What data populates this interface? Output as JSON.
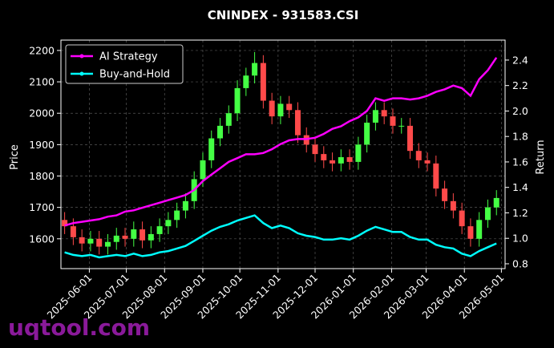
{
  "chart_data": {
    "type": "candlestick",
    "title": "CNINDEX - 931583.CSI",
    "ylabel": "Price",
    "y2label": "Return",
    "watermark": "uqtool.com",
    "x": [
      "2025-05-12",
      "2025-05-19",
      "2025-05-26",
      "2025-06-02",
      "2025-06-09",
      "2025-06-16",
      "2025-06-23",
      "2025-06-30",
      "2025-07-07",
      "2025-07-14",
      "2025-07-21",
      "2025-07-28",
      "2025-08-04",
      "2025-08-11",
      "2025-08-18",
      "2025-08-25",
      "2025-09-01",
      "2025-09-08",
      "2025-09-15",
      "2025-09-22",
      "2025-09-29",
      "2025-10-06",
      "2025-10-13",
      "2025-10-20",
      "2025-10-27",
      "2025-11-03",
      "2025-11-10",
      "2025-11-17",
      "2025-11-24",
      "2025-12-01",
      "2025-12-08",
      "2025-12-15",
      "2025-12-22",
      "2025-12-29",
      "2026-01-05",
      "2026-01-12",
      "2026-01-19",
      "2026-01-26",
      "2026-02-02",
      "2026-02-09",
      "2026-02-16",
      "2026-02-23",
      "2026-03-02",
      "2026-03-09",
      "2026-03-16",
      "2026-03-23",
      "2026-03-30",
      "2026-04-06",
      "2026-04-13",
      "2026-04-20",
      "2026-04-27"
    ],
    "candles": {
      "up_color": "#44ff44",
      "down_color": "#ff4a4a",
      "open": [
        1660,
        1640,
        1605,
        1585,
        1600,
        1575,
        1590,
        1610,
        1600,
        1630,
        1595,
        1615,
        1640,
        1660,
        1690,
        1720,
        1790,
        1850,
        1920,
        1960,
        2000,
        2080,
        2120,
        2160,
        2040,
        1990,
        2030,
        2010,
        1930,
        1900,
        1870,
        1850,
        1840,
        1860,
        1845,
        1900,
        1970,
        2010,
        1990,
        1960,
        1960,
        1880,
        1850,
        1840,
        1760,
        1720,
        1690,
        1640,
        1600,
        1660,
        1700
      ],
      "high": [
        1685,
        1665,
        1630,
        1625,
        1625,
        1615,
        1635,
        1635,
        1655,
        1655,
        1640,
        1665,
        1685,
        1715,
        1745,
        1815,
        1875,
        1945,
        1985,
        2025,
        2105,
        2145,
        2195,
        2185,
        2065,
        2055,
        2055,
        2035,
        1955,
        1925,
        1895,
        1875,
        1885,
        1885,
        1925,
        1995,
        2035,
        2035,
        2015,
        1985,
        1985,
        1905,
        1875,
        1865,
        1785,
        1745,
        1715,
        1665,
        1685,
        1725,
        1755
      ],
      "low": [
        1615,
        1580,
        1560,
        1560,
        1550,
        1550,
        1565,
        1575,
        1575,
        1570,
        1570,
        1590,
        1615,
        1635,
        1665,
        1695,
        1765,
        1825,
        1895,
        1935,
        1975,
        2055,
        2095,
        2015,
        1965,
        1965,
        1985,
        1905,
        1875,
        1845,
        1825,
        1815,
        1815,
        1820,
        1820,
        1875,
        1945,
        1965,
        1935,
        1935,
        1855,
        1825,
        1815,
        1735,
        1695,
        1665,
        1615,
        1575,
        1575,
        1635,
        1675
      ],
      "close": [
        1640,
        1605,
        1585,
        1600,
        1575,
        1590,
        1610,
        1600,
        1630,
        1595,
        1615,
        1640,
        1660,
        1690,
        1720,
        1790,
        1850,
        1920,
        1960,
        2000,
        2080,
        2120,
        2160,
        2040,
        1990,
        2030,
        2010,
        1930,
        1900,
        1870,
        1850,
        1840,
        1860,
        1845,
        1900,
        1970,
        2010,
        1990,
        1960,
        1960,
        1880,
        1850,
        1840,
        1760,
        1720,
        1690,
        1640,
        1600,
        1660,
        1700,
        1730
      ]
    },
    "series": [
      {
        "name": "AI Strategy",
        "color": "#ff00ff",
        "axis": "y2",
        "values": [
          1.1,
          1.12,
          1.13,
          1.14,
          1.15,
          1.17,
          1.18,
          1.21,
          1.22,
          1.24,
          1.26,
          1.28,
          1.3,
          1.32,
          1.34,
          1.38,
          1.45,
          1.5,
          1.55,
          1.6,
          1.63,
          1.66,
          1.66,
          1.67,
          1.7,
          1.74,
          1.77,
          1.78,
          1.78,
          1.79,
          1.82,
          1.86,
          1.88,
          1.92,
          1.95,
          2.0,
          2.1,
          2.08,
          2.1,
          2.1,
          2.09,
          2.1,
          2.12,
          2.15,
          2.17,
          2.2,
          2.18,
          2.12,
          2.25,
          2.32,
          2.42
        ]
      },
      {
        "name": "Buy-and-Hold",
        "color": "#00ffff",
        "axis": "y2",
        "values": [
          0.89,
          0.87,
          0.86,
          0.87,
          0.85,
          0.86,
          0.87,
          0.86,
          0.88,
          0.86,
          0.87,
          0.89,
          0.9,
          0.92,
          0.94,
          0.98,
          1.02,
          1.06,
          1.09,
          1.11,
          1.14,
          1.16,
          1.18,
          1.12,
          1.08,
          1.1,
          1.08,
          1.04,
          1.02,
          1.01,
          0.99,
          0.99,
          1.0,
          0.99,
          1.02,
          1.06,
          1.09,
          1.07,
          1.05,
          1.05,
          1.01,
          0.99,
          0.99,
          0.95,
          0.93,
          0.92,
          0.88,
          0.86,
          0.9,
          0.93,
          0.96
        ]
      }
    ],
    "xlim": [
      "2025-05-09",
      "2026-05-04"
    ],
    "xticks": [
      "2025-06-01",
      "2025-07-01",
      "2025-08-01",
      "2025-09-01",
      "2025-10-01",
      "2025-11-01",
      "2025-12-01",
      "2026-01-01",
      "2026-02-01",
      "2026-03-01",
      "2026-04-01",
      "2026-05-01"
    ],
    "ylim": [
      1505,
      2233
    ],
    "yticks": [
      1600,
      1700,
      1800,
      1900,
      2000,
      2100,
      2200
    ],
    "y2lim": [
      0.762,
      2.557
    ],
    "y2ticks": [
      0.8,
      {
        "value": 1,
        "label": "1.0"
      },
      1.2,
      1.4,
      1.6,
      1.8,
      {
        "value": 2,
        "label": "2.0"
      },
      2.2,
      2.4
    ],
    "grid": true,
    "legend": "upper left"
  }
}
